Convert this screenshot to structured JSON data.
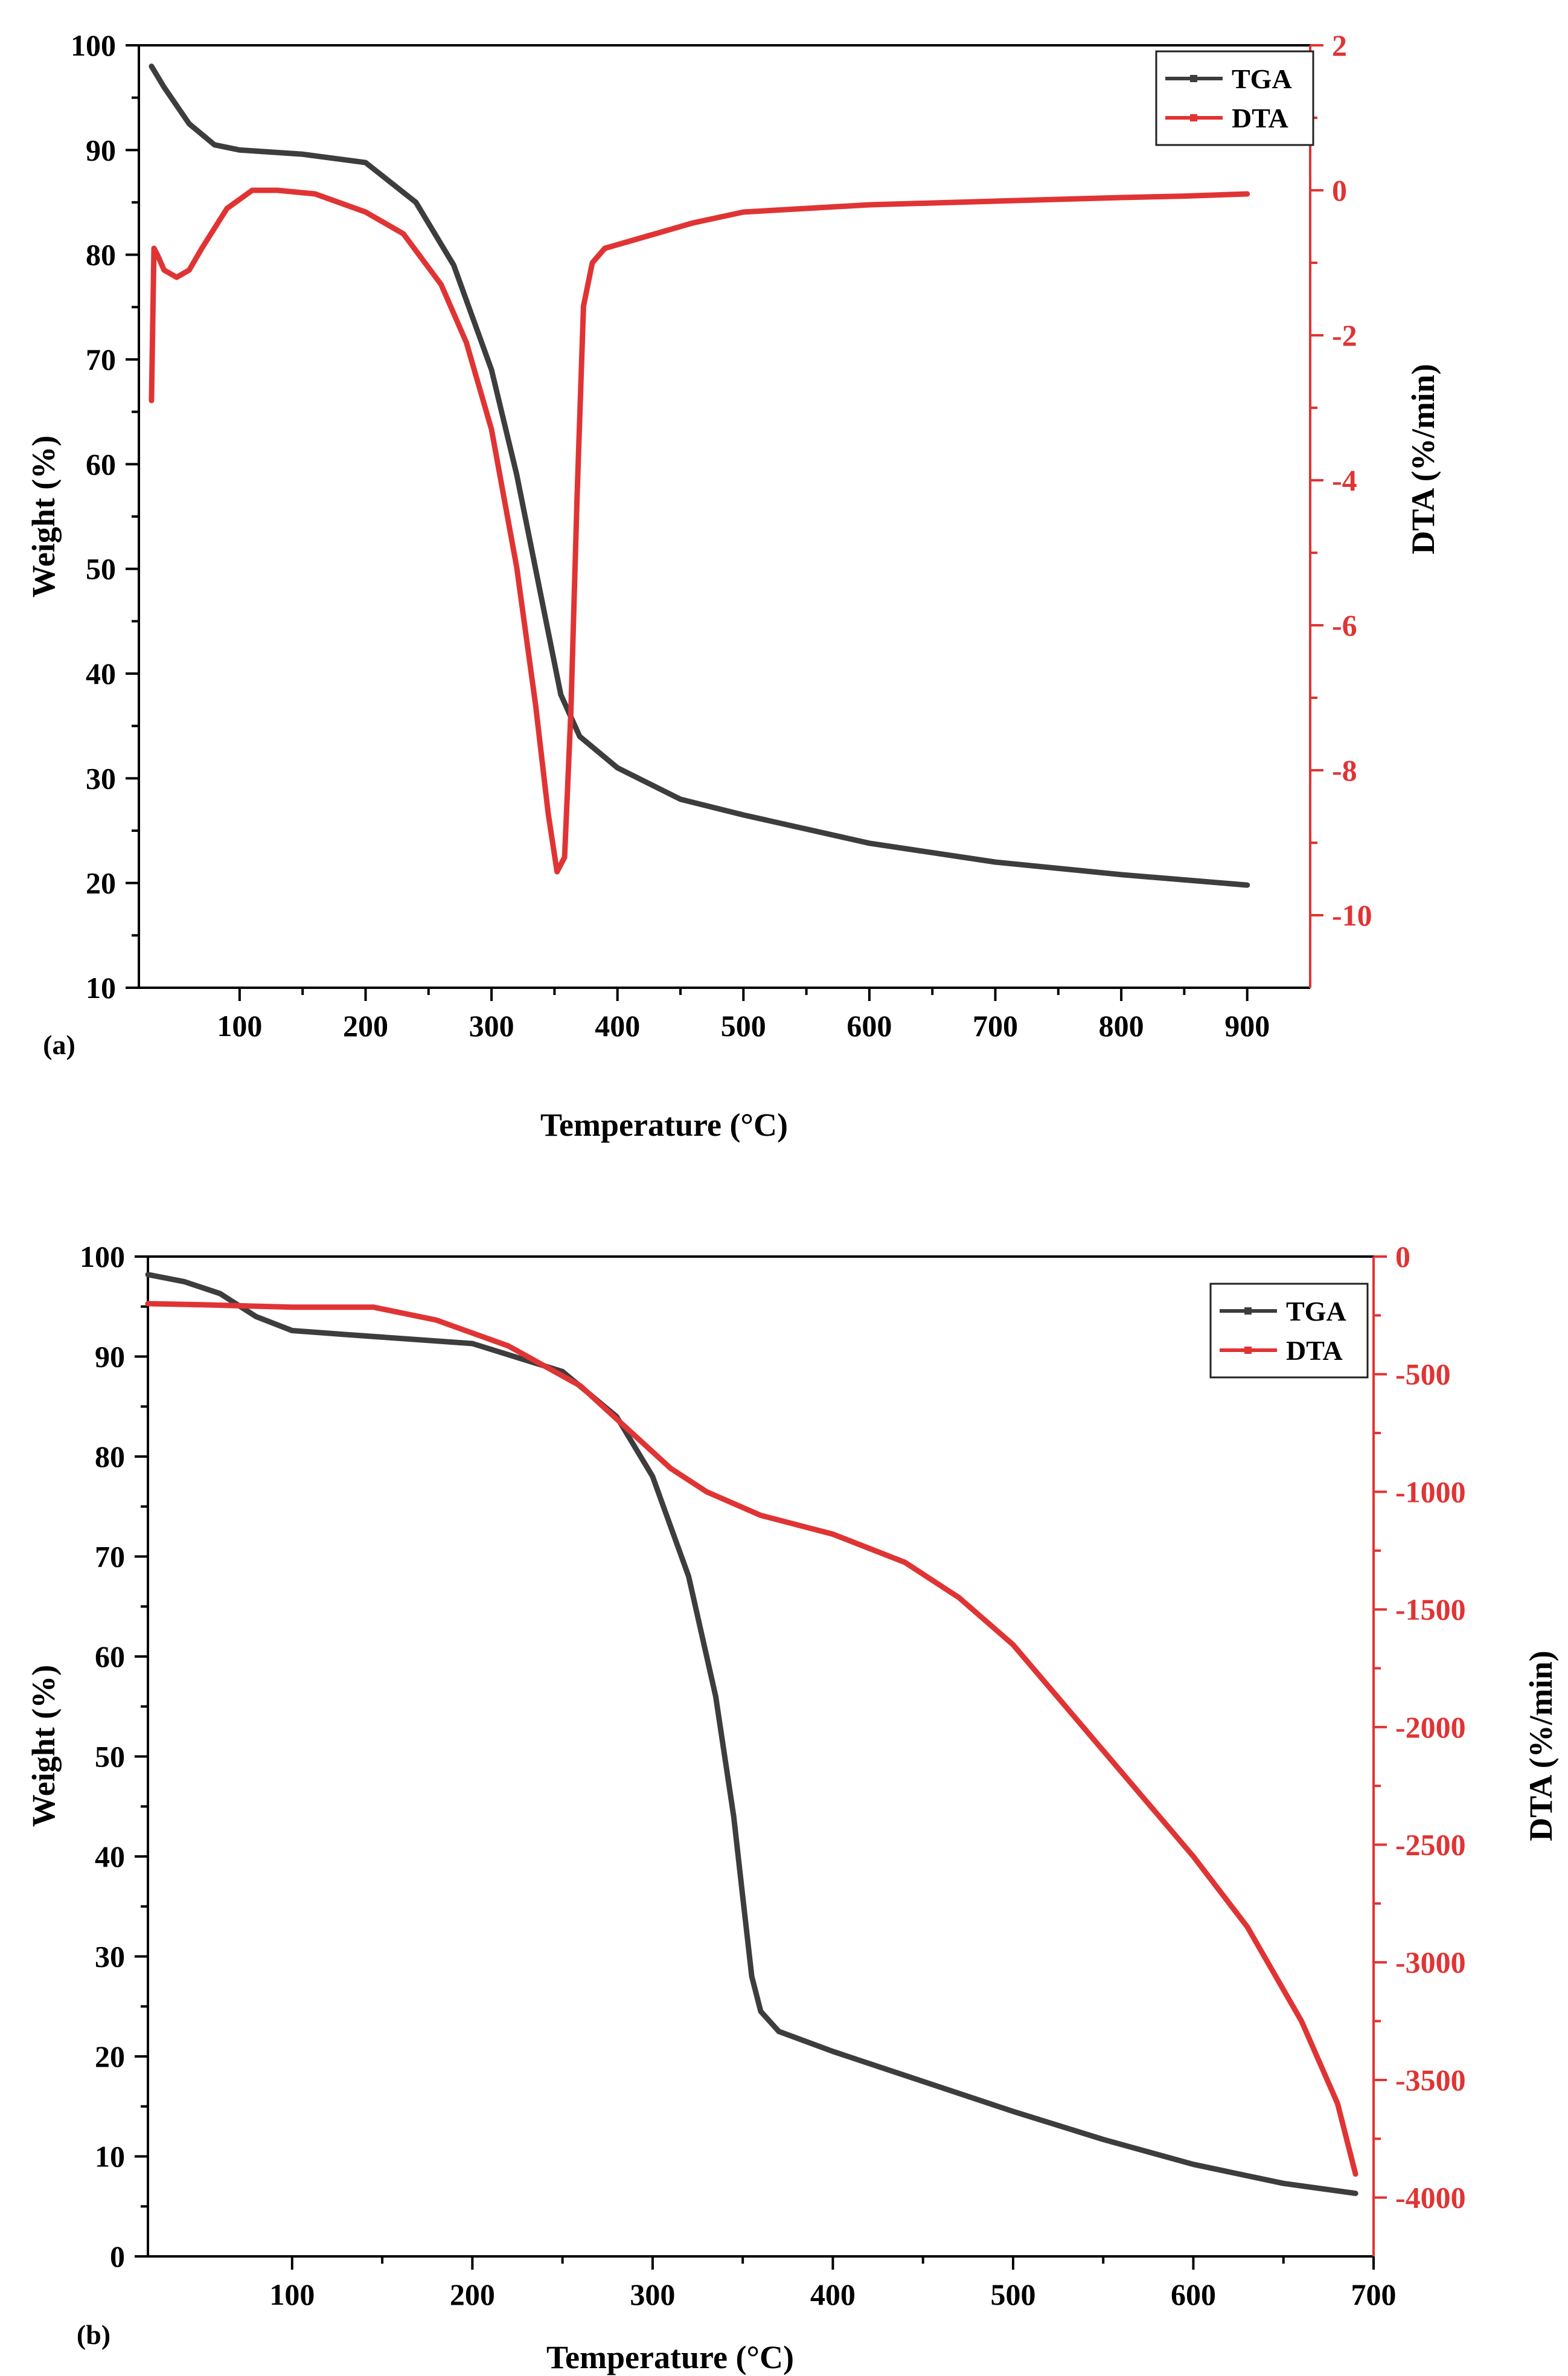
{
  "colors": {
    "tga": "#3d3d3d",
    "dta": "#e03434",
    "axis": "#000000"
  },
  "chart_data": [
    {
      "type": "line",
      "panel_label": "(a)",
      "xlabel": "Temperature (°C)",
      "ylabel_left": "Weight (%)",
      "ylabel_right": "DTA (%/min)",
      "xlim": [
        20,
        950
      ],
      "ylim_left": [
        10,
        100
      ],
      "ylim_right": [
        -11,
        2
      ],
      "xticks": [
        100,
        200,
        300,
        400,
        500,
        600,
        700,
        800,
        900
      ],
      "yticks_left": [
        10,
        20,
        30,
        40,
        50,
        60,
        70,
        80,
        90,
        100
      ],
      "yticks_right": [
        -10,
        -8,
        -6,
        -4,
        -2,
        0,
        2
      ],
      "legend": [
        "TGA",
        "DTA"
      ],
      "legend_position": "top-right",
      "series": [
        {
          "name": "TGA",
          "axis": "left",
          "x": [
            30,
            40,
            60,
            80,
            100,
            150,
            200,
            240,
            270,
            300,
            320,
            340,
            355,
            370,
            400,
            450,
            500,
            600,
            700,
            800,
            900
          ],
          "values": [
            98,
            96,
            92.5,
            90.5,
            90,
            89.6,
            88.8,
            85,
            79,
            69,
            59,
            47,
            38,
            34,
            31,
            28,
            26.5,
            23.8,
            22,
            20.8,
            19.8
          ]
        },
        {
          "name": "DTA",
          "axis": "left_right",
          "x": [
            30,
            32,
            35,
            40,
            50,
            60,
            70,
            90,
            110,
            130,
            160,
            200,
            230,
            260,
            280,
            300,
            320,
            335,
            345,
            352,
            358,
            363,
            368,
            373,
            380,
            390,
            400,
            430,
            460,
            500,
            550,
            600,
            700,
            800,
            850,
            900
          ],
          "values": [
            -2.9,
            -0.8,
            -0.9,
            -1.1,
            -1.2,
            -1.1,
            -0.8,
            -0.25,
            0,
            0,
            -0.05,
            -0.3,
            -0.6,
            -1.3,
            -2.1,
            -3.3,
            -5.2,
            -7.1,
            -8.6,
            -9.4,
            -9.2,
            -7.2,
            -4.2,
            -1.6,
            -1.0,
            -0.8,
            -0.75,
            -0.6,
            -0.45,
            -0.3,
            -0.25,
            -0.2,
            -0.15,
            -0.1,
            -0.08,
            -0.05
          ]
        }
      ]
    },
    {
      "type": "line",
      "panel_label": "(b)",
      "xlabel": "Temperature (°C)",
      "ylabel_left": "Weight (%)",
      "ylabel_right": "DTA (%/min)",
      "xlim": [
        20,
        700
      ],
      "ylim_left": [
        0,
        100
      ],
      "ylim_right": [
        -4250,
        0
      ],
      "xticks": [
        100,
        200,
        300,
        400,
        500,
        600,
        700
      ],
      "yticks_left": [
        0,
        10,
        20,
        30,
        40,
        50,
        60,
        70,
        80,
        90,
        100
      ],
      "yticks_right": [
        -4000,
        -3500,
        -3000,
        -2500,
        -2000,
        -1500,
        -1000,
        -500,
        0
      ],
      "legend": [
        "TGA",
        "DTA"
      ],
      "legend_position": "top-right",
      "series": [
        {
          "name": "TGA",
          "axis": "left",
          "x": [
            20,
            40,
            60,
            80,
            100,
            130,
            200,
            250,
            280,
            300,
            320,
            335,
            345,
            350,
            355,
            360,
            370,
            400,
            450,
            500,
            550,
            600,
            650,
            690
          ],
          "values": [
            98.2,
            97.5,
            96.3,
            94,
            92.6,
            92.2,
            91.3,
            88.5,
            84,
            78,
            68,
            56,
            44,
            36,
            28,
            24.5,
            22.5,
            20.5,
            17.5,
            14.5,
            11.7,
            9.2,
            7.3,
            6.3
          ]
        },
        {
          "name": "DTA",
          "axis": "right",
          "x": [
            20,
            50,
            100,
            145,
            180,
            220,
            260,
            290,
            310,
            330,
            360,
            400,
            440,
            470,
            500,
            550,
            600,
            630,
            660,
            680,
            690
          ],
          "values": [
            -200,
            -205,
            -215,
            -215,
            -270,
            -380,
            -550,
            -760,
            -900,
            -1000,
            -1100,
            -1180,
            -1300,
            -1450,
            -1650,
            -2100,
            -2550,
            -2850,
            -3250,
            -3600,
            -3900
          ]
        }
      ]
    }
  ]
}
